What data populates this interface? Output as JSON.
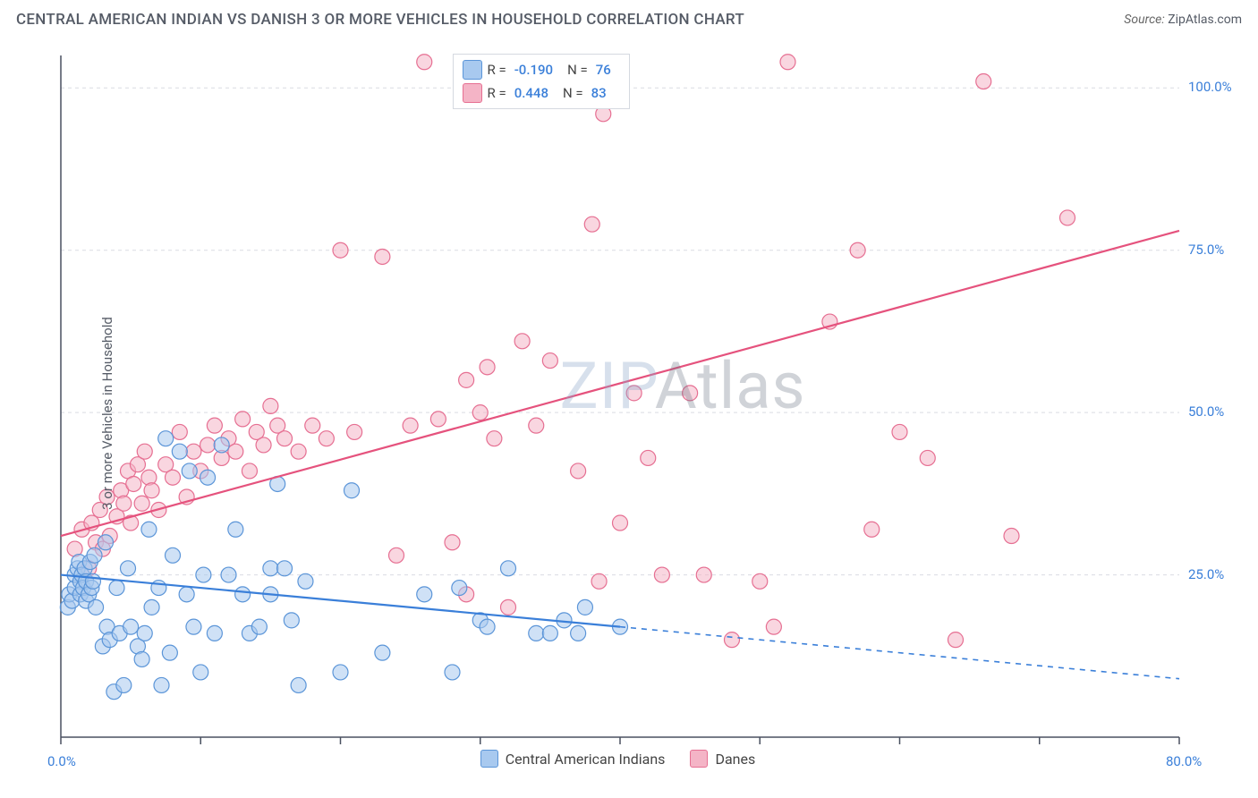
{
  "header": {
    "title": "CENTRAL AMERICAN INDIAN VS DANISH 3 OR MORE VEHICLES IN HOUSEHOLD CORRELATION CHART",
    "source_label": "Source:",
    "source_name": "ZipAtlas.com"
  },
  "chart": {
    "type": "scatter",
    "ylabel": "3 or more Vehicles in Household",
    "watermark": "ZIPAtlas",
    "background_color": "#ffffff",
    "grid_color": "#d9dce2",
    "axis_color": "#4a5160",
    "tick_color": "#4a5160",
    "xlim": [
      0,
      80
    ],
    "ylim": [
      0,
      105
    ],
    "x_ticks": [
      0,
      10,
      20,
      30,
      40,
      50,
      60,
      70,
      80
    ],
    "y_gridlines": [
      25,
      50,
      75,
      100
    ],
    "x_axis_labels": [
      {
        "value": 0,
        "label": "0.0%"
      },
      {
        "value": 80,
        "label": "80.0%"
      }
    ],
    "y_axis_labels": [
      {
        "value": 25,
        "label": "25.0%"
      },
      {
        "value": 50,
        "label": "50.0%"
      },
      {
        "value": 75,
        "label": "75.0%"
      },
      {
        "value": 100,
        "label": "100.0%"
      }
    ],
    "marker_radius": 8.5,
    "marker_stroke_width": 1.2,
    "line_width": 2.2,
    "series": {
      "s1": {
        "label": "Central American Indians",
        "fill": "#a8c9ef",
        "stroke": "#5b95d8",
        "line_color": "#3a7fd9",
        "fill_opacity": 0.55,
        "R": "-0.190",
        "N": "76",
        "trend": {
          "x1": 0,
          "y1": 25,
          "x2": 40,
          "y2": 17,
          "x_extend": 80,
          "y_extend": 9
        },
        "points": [
          [
            0.5,
            20
          ],
          [
            0.6,
            22
          ],
          [
            0.8,
            21
          ],
          [
            1,
            23
          ],
          [
            1,
            25
          ],
          [
            1.2,
            26
          ],
          [
            1.3,
            27
          ],
          [
            1.4,
            24
          ],
          [
            1.4,
            22
          ],
          [
            1.5,
            25
          ],
          [
            1.6,
            23
          ],
          [
            1.7,
            26
          ],
          [
            1.8,
            24
          ],
          [
            1.8,
            21
          ],
          [
            2,
            22
          ],
          [
            2.1,
            27
          ],
          [
            2.2,
            23
          ],
          [
            2.3,
            24
          ],
          [
            2.4,
            28
          ],
          [
            2.5,
            20
          ],
          [
            3,
            14
          ],
          [
            3.2,
            30
          ],
          [
            3.3,
            17
          ],
          [
            3.5,
            15
          ],
          [
            3.8,
            7
          ],
          [
            4,
            23
          ],
          [
            4.2,
            16
          ],
          [
            4.5,
            8
          ],
          [
            4.8,
            26
          ],
          [
            5,
            17
          ],
          [
            5.5,
            14
          ],
          [
            5.8,
            12
          ],
          [
            6,
            16
          ],
          [
            6.3,
            32
          ],
          [
            6.5,
            20
          ],
          [
            7,
            23
          ],
          [
            7.2,
            8
          ],
          [
            7.5,
            46
          ],
          [
            7.8,
            13
          ],
          [
            8,
            28
          ],
          [
            8.5,
            44
          ],
          [
            9,
            22
          ],
          [
            9.2,
            41
          ],
          [
            9.5,
            17
          ],
          [
            10,
            10
          ],
          [
            10.2,
            25
          ],
          [
            10.5,
            40
          ],
          [
            11,
            16
          ],
          [
            11.5,
            45
          ],
          [
            12,
            25
          ],
          [
            12.5,
            32
          ],
          [
            13,
            22
          ],
          [
            13.5,
            16
          ],
          [
            14.2,
            17
          ],
          [
            15,
            22
          ],
          [
            15,
            26
          ],
          [
            15.5,
            39
          ],
          [
            16,
            26
          ],
          [
            16.5,
            18
          ],
          [
            17,
            8
          ],
          [
            17.5,
            24
          ],
          [
            20,
            10
          ],
          [
            20.8,
            38
          ],
          [
            23,
            13
          ],
          [
            26,
            22
          ],
          [
            28,
            10
          ],
          [
            28.5,
            23
          ],
          [
            30,
            18
          ],
          [
            30.5,
            17
          ],
          [
            32,
            26
          ],
          [
            34,
            16
          ],
          [
            35,
            16
          ],
          [
            36,
            18
          ],
          [
            37,
            16
          ],
          [
            37.5,
            20
          ],
          [
            40,
            17
          ]
        ]
      },
      "s2": {
        "label": "Danes",
        "fill": "#f4b4c6",
        "stroke": "#e66f92",
        "line_color": "#e5527d",
        "fill_opacity": 0.55,
        "R": "0.448",
        "N": "83",
        "trend": {
          "x1": 0,
          "y1": 31,
          "x2": 80,
          "y2": 78,
          "x_extend": 80,
          "y_extend": 78
        },
        "points": [
          [
            1,
            29
          ],
          [
            1.5,
            32
          ],
          [
            2,
            26
          ],
          [
            2.2,
            33
          ],
          [
            2.5,
            30
          ],
          [
            2.8,
            35
          ],
          [
            3,
            29
          ],
          [
            3.3,
            37
          ],
          [
            3.5,
            31
          ],
          [
            4,
            34
          ],
          [
            4.3,
            38
          ],
          [
            4.5,
            36
          ],
          [
            4.8,
            41
          ],
          [
            5,
            33
          ],
          [
            5.2,
            39
          ],
          [
            5.5,
            42
          ],
          [
            5.8,
            36
          ],
          [
            6,
            44
          ],
          [
            6.3,
            40
          ],
          [
            6.5,
            38
          ],
          [
            7,
            35
          ],
          [
            7.5,
            42
          ],
          [
            8,
            40
          ],
          [
            8.5,
            47
          ],
          [
            9,
            37
          ],
          [
            9.5,
            44
          ],
          [
            10,
            41
          ],
          [
            10.5,
            45
          ],
          [
            11,
            48
          ],
          [
            11.5,
            43
          ],
          [
            12,
            46
          ],
          [
            12.5,
            44
          ],
          [
            13,
            49
          ],
          [
            13.5,
            41
          ],
          [
            14,
            47
          ],
          [
            14.5,
            45
          ],
          [
            15,
            51
          ],
          [
            15.5,
            48
          ],
          [
            16,
            46
          ],
          [
            17,
            44
          ],
          [
            18,
            48
          ],
          [
            19,
            46
          ],
          [
            20,
            75
          ],
          [
            21,
            47
          ],
          [
            23,
            74
          ],
          [
            24,
            28
          ],
          [
            25,
            48
          ],
          [
            26,
            104
          ],
          [
            27,
            49
          ],
          [
            28,
            30
          ],
          [
            29,
            55
          ],
          [
            29,
            22
          ],
          [
            30,
            50
          ],
          [
            30.5,
            57
          ],
          [
            31,
            46
          ],
          [
            32,
            20
          ],
          [
            33,
            61
          ],
          [
            34,
            48
          ],
          [
            35,
            58
          ],
          [
            37,
            41
          ],
          [
            38,
            79
          ],
          [
            38.5,
            24
          ],
          [
            38.8,
            96
          ],
          [
            39,
            104
          ],
          [
            40,
            33
          ],
          [
            41,
            53
          ],
          [
            42,
            43
          ],
          [
            43,
            25
          ],
          [
            45,
            53
          ],
          [
            46,
            25
          ],
          [
            48,
            15
          ],
          [
            51,
            17
          ],
          [
            52,
            104
          ],
          [
            55,
            64
          ],
          [
            57,
            75
          ],
          [
            58,
            32
          ],
          [
            60,
            47
          ],
          [
            64,
            15
          ],
          [
            66,
            101
          ],
          [
            68,
            31
          ],
          [
            72,
            80
          ],
          [
            62,
            43
          ],
          [
            50,
            24
          ]
        ]
      }
    },
    "legend_top": {
      "r_label": "R =",
      "n_label": "N ="
    },
    "legend_bottom": {
      "items": [
        {
          "key": "s1",
          "label": "Central American Indians"
        },
        {
          "key": "s2",
          "label": "Danes"
        }
      ]
    }
  }
}
